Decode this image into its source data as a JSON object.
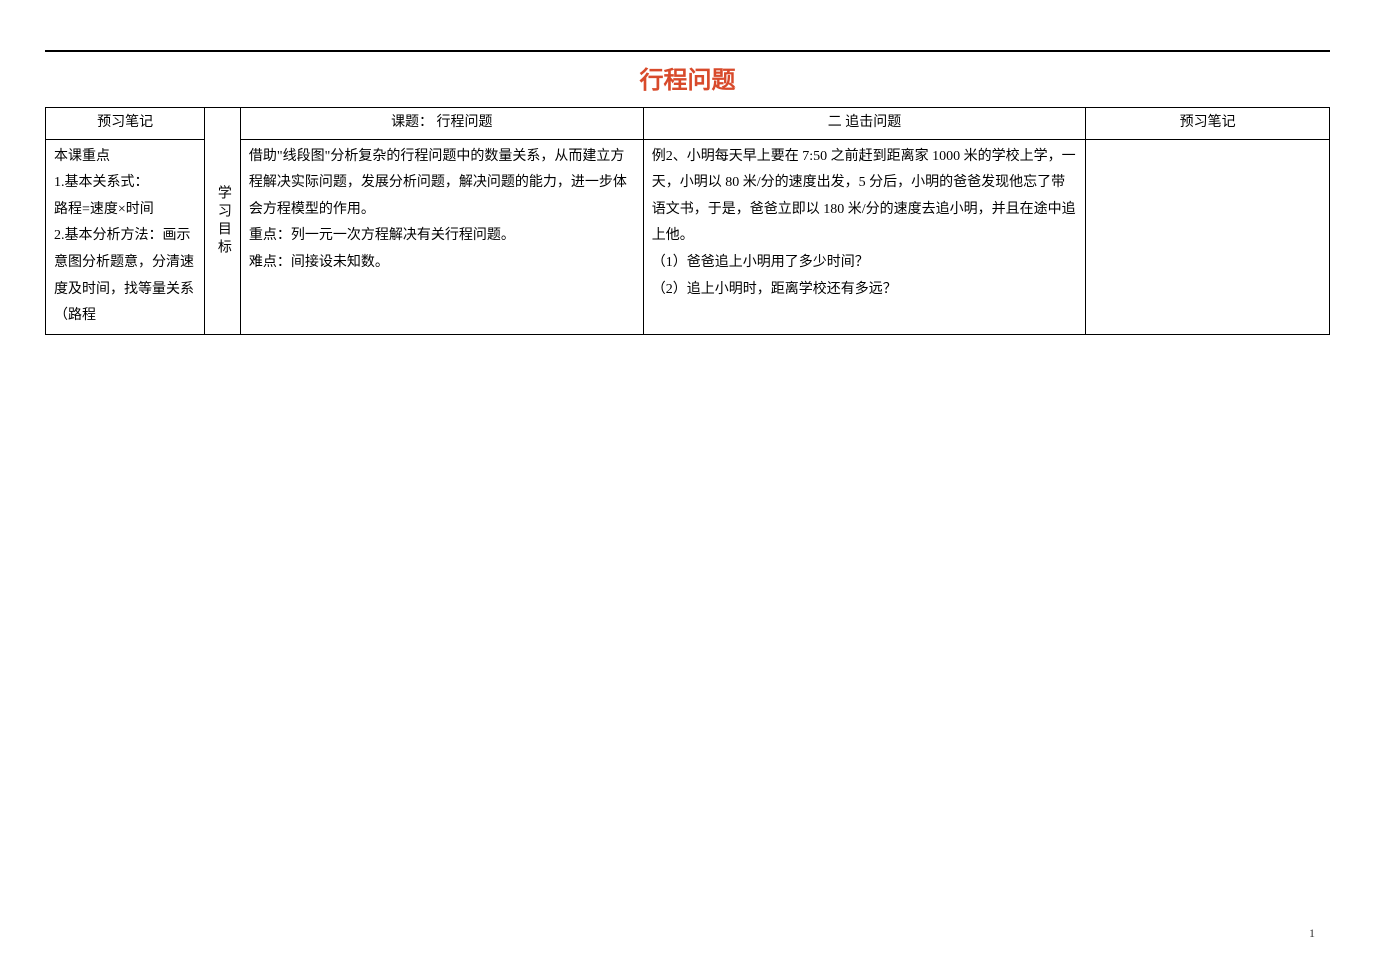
{
  "title": "行程问题",
  "headers": {
    "notes_left": "预习笔记",
    "topic": "课题：  行程问题",
    "example_header": "二 追击问题",
    "notes_right": "预习笔记"
  },
  "vertical_label": "学习目标",
  "notes_left_content": "本课重点\n1.基本关系式：\n路程=速度×时间\n2.基本分析方法：画示意图分析题意，分清速度及时间，找等量关系（路程",
  "topic_content": "借助\"线段图\"分析复杂的行程问题中的数量关系，从而建立方程解决实际问题，发展分析问题，解决问题的能力，进一步体会方程模型的作用。\n重点：列一元一次方程解决有关行程问题。\n难点：间接设未知数。",
  "example_content": "例2、小明每天早上要在 7:50 之前赶到距离家 1000 米的学校上学，一天，小明以 80 米/分的速度出发，5 分后，小明的爸爸发现他忘了带语文书，于是，爸爸立即以 180 米/分的速度去追小明，并且在途中追上他。\n（1）爸爸追上小明用了多少时间？\n（2）追上小明时，距离学校还有多远？",
  "page_number": "1",
  "colors": {
    "title_color": "#d84a2b",
    "border_color": "#000000",
    "background": "#ffffff"
  }
}
